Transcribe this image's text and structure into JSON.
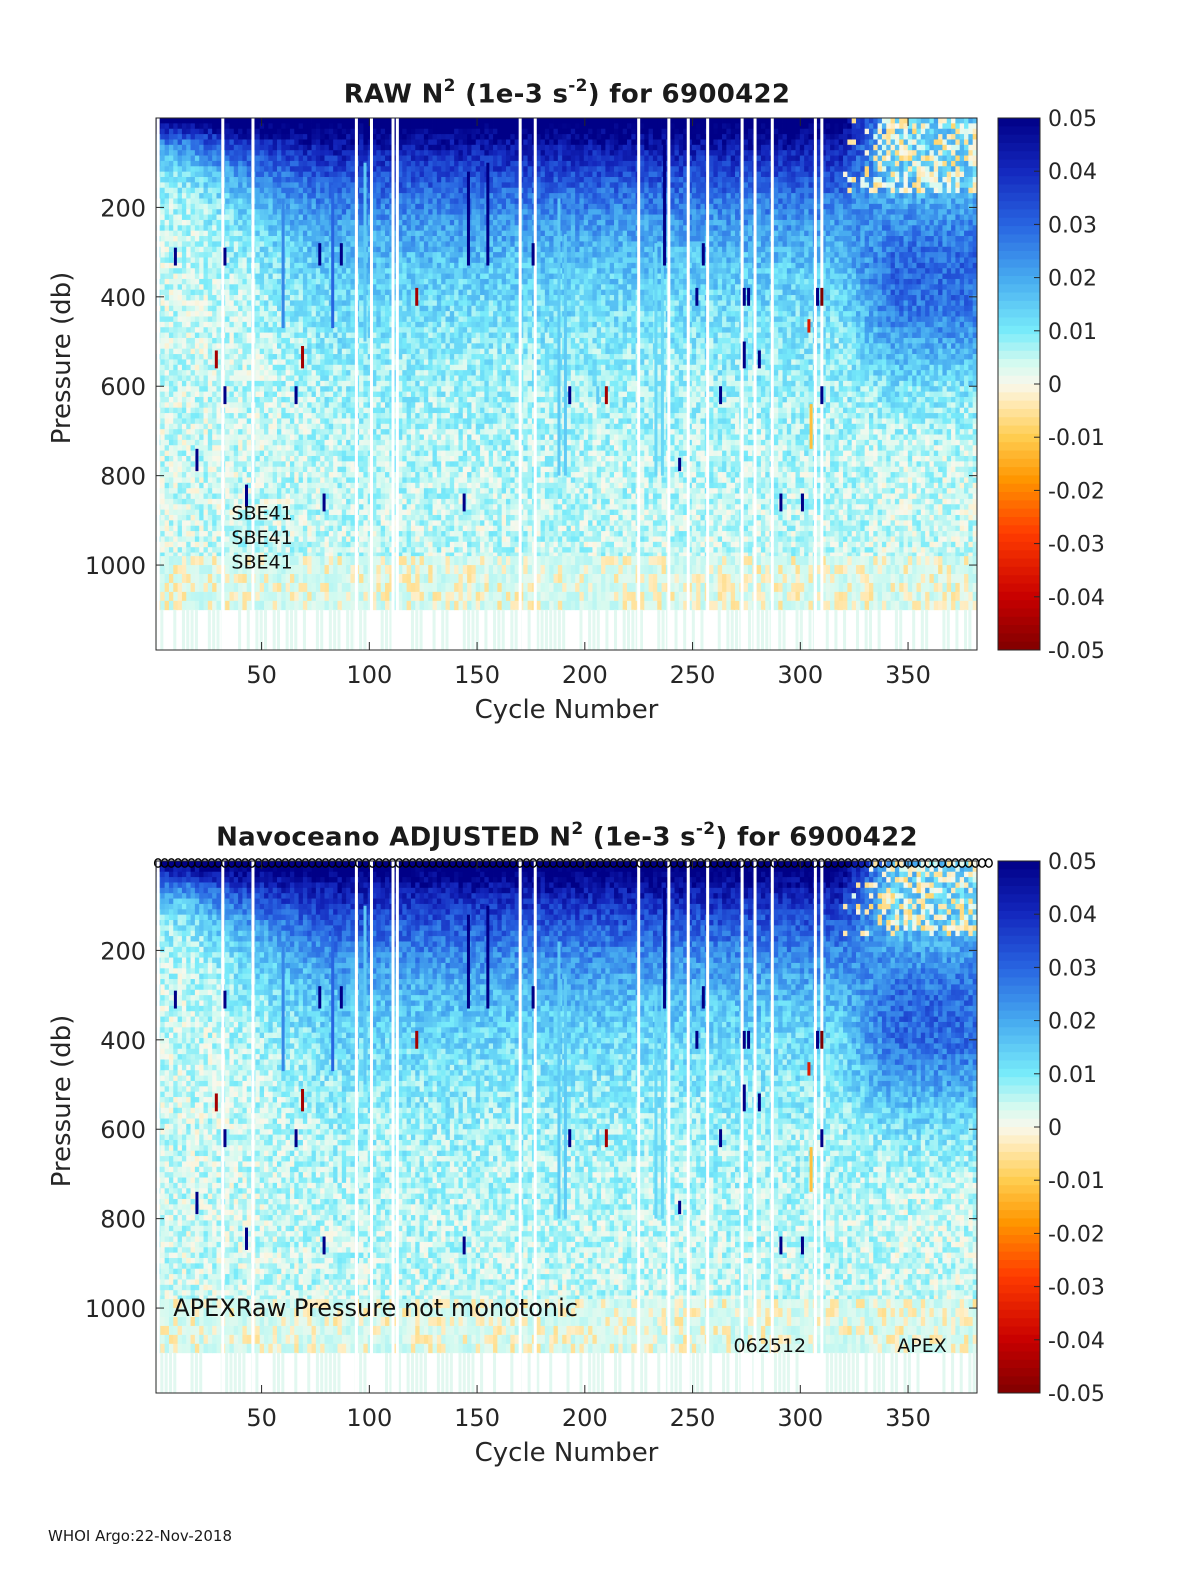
{
  "chart_data": [
    {
      "type": "heatmap",
      "id": "raw",
      "title": {
        "prefix": "RAW N",
        "sup": "2",
        "mid": " (1e-3 s",
        "sup2": "-2",
        "suffix": ") for 6900422"
      },
      "xlabel": "Cycle Number",
      "ylabel": "Pressure (db)",
      "xlim": [
        1,
        382
      ],
      "ylim": [
        1190,
        0
      ],
      "xticks": [
        50,
        100,
        150,
        200,
        250,
        300,
        350
      ],
      "yticks": [
        200,
        400,
        600,
        800,
        1000
      ],
      "colorbar": {
        "clim": [
          -0.05,
          0.05
        ],
        "ticks": [
          "0.05",
          "0.04",
          "0.03",
          "0.02",
          "0.01",
          "0",
          "-0.01",
          "-0.02",
          "-0.03",
          "-0.04",
          "-0.05"
        ]
      },
      "annotations": [
        {
          "text": "SBE41",
          "x": 36,
          "y": 880
        },
        {
          "text": "SBE41",
          "x": 36,
          "y": 935
        },
        {
          "text": "SBE41",
          "x": 36,
          "y": 990
        }
      ],
      "gaps": [
        2,
        32,
        46,
        94,
        101,
        111,
        113,
        170,
        177,
        225,
        239,
        248,
        257,
        273,
        279,
        287,
        307,
        310
      ],
      "spikes": [
        {
          "x": 10,
          "p0": 290,
          "p1": 330,
          "v": 0.05
        },
        {
          "x": 20,
          "p0": 740,
          "p1": 790,
          "v": 0.05
        },
        {
          "x": 29,
          "p0": 520,
          "p1": 560,
          "v": -0.045
        },
        {
          "x": 33,
          "p0": 290,
          "p1": 330,
          "v": 0.05
        },
        {
          "x": 33,
          "p0": 600,
          "p1": 640,
          "v": 0.05
        },
        {
          "x": 43,
          "p0": 820,
          "p1": 870,
          "v": 0.05
        },
        {
          "x": 60,
          "p0": 180,
          "p1": 470,
          "v": 0.025
        },
        {
          "x": 66,
          "p0": 600,
          "p1": 640,
          "v": 0.05
        },
        {
          "x": 69,
          "p0": 510,
          "p1": 560,
          "v": -0.045
        },
        {
          "x": 77,
          "p0": 280,
          "p1": 330,
          "v": 0.05
        },
        {
          "x": 79,
          "p0": 840,
          "p1": 880,
          "v": 0.05
        },
        {
          "x": 83,
          "p0": 150,
          "p1": 470,
          "v": 0.03
        },
        {
          "x": 87,
          "p0": 280,
          "p1": 330,
          "v": 0.05
        },
        {
          "x": 98,
          "p0": 100,
          "p1": 500,
          "v": 0.015
        },
        {
          "x": 122,
          "p0": 380,
          "p1": 420,
          "v": -0.045
        },
        {
          "x": 144,
          "p0": 840,
          "p1": 880,
          "v": 0.05
        },
        {
          "x": 146,
          "p0": 120,
          "p1": 330,
          "v": 0.05
        },
        {
          "x": 155,
          "p0": 100,
          "p1": 330,
          "v": 0.05
        },
        {
          "x": 176,
          "p0": 280,
          "p1": 330,
          "v": 0.05
        },
        {
          "x": 182,
          "p0": 450,
          "p1": 480,
          "v": 0.015
        },
        {
          "x": 188,
          "p0": 180,
          "p1": 800,
          "v": 0.015
        },
        {
          "x": 191,
          "p0": 260,
          "p1": 800,
          "v": 0.015
        },
        {
          "x": 193,
          "p0": 600,
          "p1": 640,
          "v": 0.05
        },
        {
          "x": 206,
          "p0": 600,
          "p1": 640,
          "v": 0.015
        },
        {
          "x": 210,
          "p0": 600,
          "p1": 640,
          "v": -0.045
        },
        {
          "x": 233,
          "p0": 280,
          "p1": 800,
          "v": 0.013
        },
        {
          "x": 236,
          "p0": 280,
          "p1": 800,
          "v": 0.013
        },
        {
          "x": 237,
          "p0": 60,
          "p1": 330,
          "v": 0.05
        },
        {
          "x": 244,
          "p0": 760,
          "p1": 790,
          "v": 0.05
        },
        {
          "x": 252,
          "p0": 380,
          "p1": 420,
          "v": 0.05
        },
        {
          "x": 255,
          "p0": 280,
          "p1": 330,
          "v": 0.05
        },
        {
          "x": 263,
          "p0": 600,
          "p1": 640,
          "v": 0.05
        },
        {
          "x": 274,
          "p0": 380,
          "p1": 420,
          "v": 0.05
        },
        {
          "x": 274,
          "p0": 500,
          "p1": 560,
          "v": 0.05
        },
        {
          "x": 276,
          "p0": 380,
          "p1": 420,
          "v": 0.05
        },
        {
          "x": 281,
          "p0": 520,
          "p1": 560,
          "v": 0.05
        },
        {
          "x": 291,
          "p0": 840,
          "p1": 880,
          "v": 0.05
        },
        {
          "x": 301,
          "p0": 840,
          "p1": 880,
          "v": 0.05
        },
        {
          "x": 304,
          "p0": 450,
          "p1": 480,
          "v": -0.035
        },
        {
          "x": 305,
          "p0": 640,
          "p1": 740,
          "v": -0.012
        },
        {
          "x": 308,
          "p0": 380,
          "p1": 420,
          "v": 0.05
        },
        {
          "x": 310,
          "p0": 380,
          "p1": 420,
          "v": -0.05
        },
        {
          "x": 310,
          "p0": 600,
          "p1": 640,
          "v": 0.05
        }
      ]
    },
    {
      "type": "heatmap",
      "id": "adjusted",
      "title": {
        "prefix": "Navoceano  ADJUSTED N",
        "sup": "2",
        "mid": " (1e-3 s",
        "sup2": "-2",
        "suffix": ") for 6900422"
      },
      "xlabel": "Cycle Number",
      "ylabel": "Pressure (db)",
      "xlim": [
        1,
        382
      ],
      "ylim": [
        1190,
        0
      ],
      "xticks": [
        50,
        100,
        150,
        200,
        250,
        300,
        350
      ],
      "yticks": [
        200,
        400,
        600,
        800,
        1000
      ],
      "colorbar": {
        "clim": [
          -0.05,
          0.05
        ],
        "ticks": [
          "0.05",
          "0.04",
          "0.03",
          "0.02",
          "0.01",
          "0",
          "-0.01",
          "-0.02",
          "-0.03",
          "-0.04",
          "-0.05"
        ]
      },
      "annotations": [
        {
          "text": "APEX",
          "x": 9,
          "y": 1000,
          "large": true
        },
        {
          "text": "Raw Pressure not monotonic",
          "x": 38,
          "y": 1000,
          "large": true
        },
        {
          "text": "062512",
          "x": 269,
          "y": 1080
        },
        {
          "text": "APEX",
          "x": 345,
          "y": 1080
        }
      ],
      "top_markers": "ring",
      "gaps": [
        2,
        32,
        46,
        94,
        101,
        111,
        113,
        170,
        177,
        225,
        239,
        248,
        257,
        273,
        279,
        287,
        307,
        310
      ],
      "spikes": [
        {
          "x": 10,
          "p0": 290,
          "p1": 330,
          "v": 0.05
        },
        {
          "x": 20,
          "p0": 740,
          "p1": 790,
          "v": 0.05
        },
        {
          "x": 29,
          "p0": 520,
          "p1": 560,
          "v": -0.045
        },
        {
          "x": 33,
          "p0": 290,
          "p1": 330,
          "v": 0.05
        },
        {
          "x": 33,
          "p0": 600,
          "p1": 640,
          "v": 0.05
        },
        {
          "x": 43,
          "p0": 820,
          "p1": 870,
          "v": 0.05
        },
        {
          "x": 60,
          "p0": 180,
          "p1": 470,
          "v": 0.025
        },
        {
          "x": 66,
          "p0": 600,
          "p1": 640,
          "v": 0.05
        },
        {
          "x": 69,
          "p0": 510,
          "p1": 560,
          "v": -0.045
        },
        {
          "x": 77,
          "p0": 280,
          "p1": 330,
          "v": 0.05
        },
        {
          "x": 79,
          "p0": 840,
          "p1": 880,
          "v": 0.05
        },
        {
          "x": 83,
          "p0": 150,
          "p1": 470,
          "v": 0.03
        },
        {
          "x": 87,
          "p0": 280,
          "p1": 330,
          "v": 0.05
        },
        {
          "x": 98,
          "p0": 100,
          "p1": 500,
          "v": 0.015
        },
        {
          "x": 122,
          "p0": 380,
          "p1": 420,
          "v": -0.045
        },
        {
          "x": 144,
          "p0": 840,
          "p1": 880,
          "v": 0.05
        },
        {
          "x": 146,
          "p0": 120,
          "p1": 330,
          "v": 0.05
        },
        {
          "x": 155,
          "p0": 100,
          "p1": 330,
          "v": 0.05
        },
        {
          "x": 176,
          "p0": 280,
          "p1": 330,
          "v": 0.05
        },
        {
          "x": 182,
          "p0": 450,
          "p1": 480,
          "v": 0.015
        },
        {
          "x": 188,
          "p0": 180,
          "p1": 800,
          "v": 0.015
        },
        {
          "x": 191,
          "p0": 260,
          "p1": 800,
          "v": 0.015
        },
        {
          "x": 193,
          "p0": 600,
          "p1": 640,
          "v": 0.05
        },
        {
          "x": 206,
          "p0": 600,
          "p1": 640,
          "v": 0.015
        },
        {
          "x": 210,
          "p0": 600,
          "p1": 640,
          "v": -0.045
        },
        {
          "x": 233,
          "p0": 280,
          "p1": 800,
          "v": 0.013
        },
        {
          "x": 236,
          "p0": 280,
          "p1": 800,
          "v": 0.013
        },
        {
          "x": 237,
          "p0": 60,
          "p1": 330,
          "v": 0.05
        },
        {
          "x": 244,
          "p0": 760,
          "p1": 790,
          "v": 0.05
        },
        {
          "x": 252,
          "p0": 380,
          "p1": 420,
          "v": 0.05
        },
        {
          "x": 255,
          "p0": 280,
          "p1": 330,
          "v": 0.05
        },
        {
          "x": 263,
          "p0": 600,
          "p1": 640,
          "v": 0.05
        },
        {
          "x": 274,
          "p0": 380,
          "p1": 420,
          "v": 0.05
        },
        {
          "x": 274,
          "p0": 500,
          "p1": 560,
          "v": 0.05
        },
        {
          "x": 276,
          "p0": 380,
          "p1": 420,
          "v": 0.05
        },
        {
          "x": 281,
          "p0": 520,
          "p1": 560,
          "v": 0.05
        },
        {
          "x": 291,
          "p0": 840,
          "p1": 880,
          "v": 0.05
        },
        {
          "x": 301,
          "p0": 840,
          "p1": 880,
          "v": 0.05
        },
        {
          "x": 304,
          "p0": 450,
          "p1": 480,
          "v": -0.035
        },
        {
          "x": 305,
          "p0": 640,
          "p1": 740,
          "v": -0.012
        },
        {
          "x": 308,
          "p0": 380,
          "p1": 420,
          "v": 0.05
        },
        {
          "x": 310,
          "p0": 380,
          "p1": 420,
          "v": -0.05
        },
        {
          "x": 310,
          "p0": 600,
          "p1": 640,
          "v": 0.05
        }
      ]
    }
  ],
  "footer": {
    "label": "WHOI Argo:",
    "date": "22-Nov-2018"
  }
}
